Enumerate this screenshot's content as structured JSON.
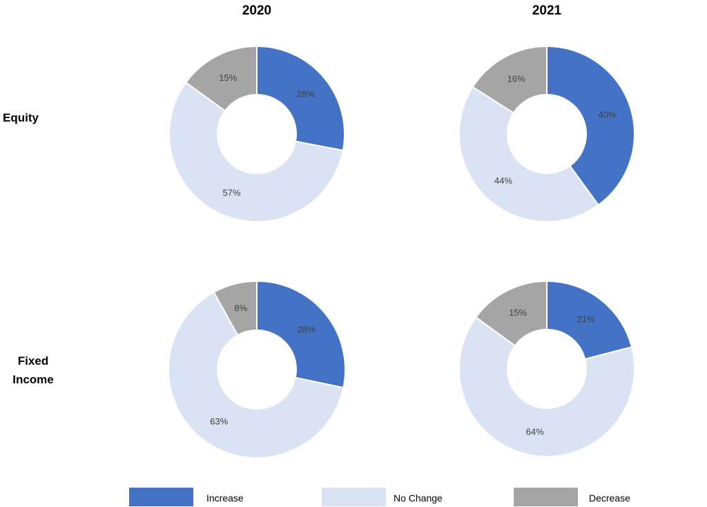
{
  "columns": [
    "2020",
    "2021"
  ],
  "rows": [
    {
      "label_lines": [
        "Equity"
      ]
    },
    {
      "label_lines": [
        "Fixed",
        "Income"
      ]
    }
  ],
  "colors": {
    "Increase": "#4472C4",
    "No Change": "#DAE3F3",
    "Decrease": "#A5A5A5"
  },
  "legend": [
    {
      "label": "Increase",
      "color": "#4472C4"
    },
    {
      "label": "No Change",
      "color": "#DAE3F3"
    },
    {
      "label": "Decrease",
      "color": "#A5A5A5"
    }
  ],
  "chart_data": [
    {
      "type": "pie",
      "variant": "donut",
      "row": "Equity",
      "column": "2020",
      "categories": [
        "Increase",
        "No Change",
        "Decrease"
      ],
      "values": [
        28,
        57,
        15
      ],
      "labels": [
        "28%",
        "57%",
        "15%"
      ]
    },
    {
      "type": "pie",
      "variant": "donut",
      "row": "Equity",
      "column": "2021",
      "categories": [
        "Increase",
        "No Change",
        "Decrease"
      ],
      "values": [
        40,
        44,
        16
      ],
      "labels": [
        "40%",
        "44%",
        "16%"
      ]
    },
    {
      "type": "pie",
      "variant": "donut",
      "row": "Fixed Income",
      "column": "2020",
      "categories": [
        "Increase",
        "No Change",
        "Decrease"
      ],
      "values": [
        28,
        63,
        8
      ],
      "labels": [
        "28%",
        "63%",
        "8%"
      ]
    },
    {
      "type": "pie",
      "variant": "donut",
      "row": "Fixed Income",
      "column": "2021",
      "categories": [
        "Increase",
        "No Change",
        "Decrease"
      ],
      "values": [
        21,
        64,
        15
      ],
      "labels": [
        "21%",
        "64%",
        "15%"
      ]
    }
  ]
}
